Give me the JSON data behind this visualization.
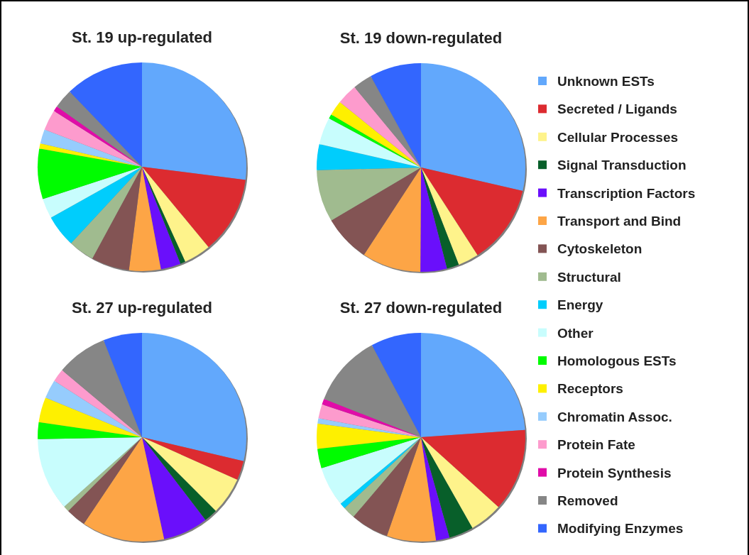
{
  "chart_data": [
    {
      "type": "pie",
      "title": "St. 19 up-regulated",
      "legend": false,
      "categories": [
        null,
        null,
        null,
        null,
        null,
        null,
        null,
        null,
        null,
        null,
        null,
        null,
        null,
        null,
        null,
        null,
        null
      ],
      "values": [
        27,
        12,
        4.2,
        0.8,
        3.1,
        4.9,
        5.9,
        4,
        5,
        3.1,
        7.8,
        0.8,
        2.2,
        3.2,
        0.8,
        3,
        12.2
      ],
      "colors": [
        "#62a8fc",
        "#dc2b30",
        "#fef38b",
        "#085f2a",
        "#6a0ffb",
        "#fda546",
        "#835454",
        "#a0bb8f",
        "#00cdfc",
        "#c8fdfd",
        "#00fc00",
        "#fef000",
        "#96ccfd",
        "#fd9bcd",
        "#e00ca8",
        "#868686",
        "#3366fe"
      ]
    },
    {
      "type": "pie",
      "title": "St. 19 down-regulated",
      "legend": "right",
      "categories": [
        "Unknown ESTs",
        "Secreted / Ligands",
        "Cellular Processes",
        "Signal Transduction",
        "Transcription Factors",
        "Transport and Bind",
        "Cytoskeleton",
        "Structural",
        "Energy",
        "Other",
        "Homologous ESTs",
        "Receptors",
        "Chromatin Assoc.",
        "Protein Fate",
        "Protein Synthesis",
        "Removed",
        "Modifying Enzymes"
      ],
      "values": [
        28.6,
        12.3,
        3.2,
        1.9,
        4.1,
        9.1,
        7.3,
        8.1,
        4,
        4.2,
        0.7,
        2.3,
        0,
        3.2,
        0,
        3,
        8
      ],
      "colors": [
        "#62a8fc",
        "#dc2b30",
        "#fef38b",
        "#085f2a",
        "#6a0ffb",
        "#fda546",
        "#835454",
        "#a0bb8f",
        "#00cdfc",
        "#c8fdfd",
        "#00fc00",
        "#fef000",
        "#96ccfd",
        "#fd9bcd",
        "#e00ca8",
        "#868686",
        "#3366fe"
      ]
    },
    {
      "type": "pie",
      "title": "St. 27 up-regulated",
      "legend": false,
      "categories": [
        null,
        null,
        null,
        null,
        null,
        null,
        null,
        null,
        null,
        null,
        null,
        null,
        null,
        null,
        null,
        null,
        null
      ],
      "values": [
        28.7,
        3,
        5.8,
        2.1,
        7,
        12.8,
        3.1,
        0.9,
        0,
        11.3,
        2.6,
        3.9,
        2.9,
        2,
        0,
        7.9,
        6
      ],
      "colors": [
        "#62a8fc",
        "#dc2b30",
        "#fef38b",
        "#085f2a",
        "#6a0ffb",
        "#fda546",
        "#835454",
        "#a0bb8f",
        "#00cdfc",
        "#c8fdfd",
        "#00fc00",
        "#fef000",
        "#96ccfd",
        "#fd9bcd",
        "#e00ca8",
        "#868686",
        "#3366fe"
      ]
    },
    {
      "type": "pie",
      "title": "St. 27 down-regulated",
      "legend": false,
      "categories": [
        null,
        null,
        null,
        null,
        null,
        null,
        null,
        null,
        null,
        null,
        null,
        null,
        null,
        null,
        null,
        null,
        null
      ],
      "values": [
        23.9,
        12.8,
        5.1,
        3.8,
        2.1,
        7.6,
        5.9,
        1.9,
        0.9,
        6.2,
        3,
        3.9,
        0.8,
        2.2,
        0.9,
        11.2,
        7.8
      ],
      "colors": [
        "#62a8fc",
        "#dc2b30",
        "#fef38b",
        "#085f2a",
        "#6a0ffb",
        "#fda546",
        "#835454",
        "#a0bb8f",
        "#00cdfc",
        "#c8fdfd",
        "#00fc00",
        "#fef000",
        "#96ccfd",
        "#fd9bcd",
        "#e00ca8",
        "#868686",
        "#3366fe"
      ]
    }
  ]
}
